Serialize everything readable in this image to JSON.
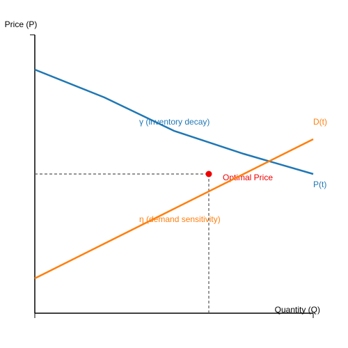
{
  "chart_data": {
    "type": "line",
    "xlabel": "Quantity (Q)",
    "ylabel": "Price (P)",
    "xlim": [
      0,
      100
    ],
    "ylim": [
      0,
      100
    ],
    "x": [
      0,
      25,
      50,
      75,
      100
    ],
    "series": [
      {
        "name": "P(t)",
        "color": "#1f77b4",
        "values": [
          87.5,
          77.5,
          65.5,
          57.25,
          50
        ]
      },
      {
        "name": "D(t)",
        "color": "#ff7f0e",
        "values": [
          12.5,
          25,
          37.5,
          50,
          62.5
        ]
      }
    ],
    "annotations": [
      "γ (inventory decay)",
      "η (demand sensitivity)"
    ],
    "optimal": {
      "label": "Optimal Price",
      "x": 62.5,
      "y": 50,
      "color": "#ee0000"
    }
  }
}
